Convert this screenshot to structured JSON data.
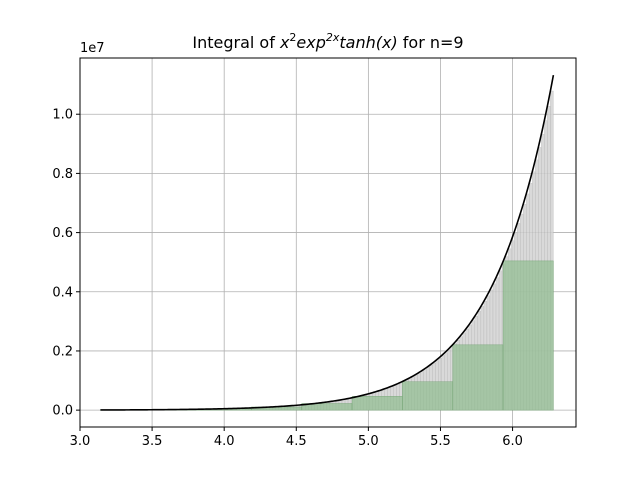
{
  "chart_data": {
    "type": "bar",
    "title": {
      "prefix": "Integral of ",
      "base": "x",
      "sup1": "2",
      "mid": "exp",
      "sup2": "2x",
      "suffix_func": "tanh",
      "suffix_arg": "(x)",
      "tail": " for n=9"
    },
    "xlabel": "",
    "ylabel": "",
    "y_offset_label": "1e7",
    "xlim": [
      3.0,
      6.44
    ],
    "ylim": [
      -0.057,
      1.19
    ],
    "x_ticks": [
      3.0,
      3.5,
      4.0,
      4.5,
      5.0,
      5.5,
      6.0
    ],
    "x_tick_labels": [
      "3.0",
      "3.5",
      "4.0",
      "4.5",
      "5.0",
      "5.5",
      "6.0"
    ],
    "y_ticks": [
      0.0,
      0.2,
      0.4,
      0.6,
      0.8,
      1.0
    ],
    "y_tick_labels": [
      "0.0",
      "0.2",
      "0.4",
      "0.6",
      "0.8",
      "1.0"
    ],
    "grid": true,
    "curve": {
      "x_start": 3.1416,
      "x_end": 6.2832,
      "color": "#000000"
    },
    "fine_bars": {
      "count": 150,
      "color": "#d3d3d3",
      "edge": "#a9a9a9"
    },
    "coarse_bars": {
      "color": "#8fbc8f",
      "x_left": [
        3.1416,
        3.4907,
        3.8397,
        4.1888,
        4.5379,
        4.8869,
        5.236,
        5.5851,
        5.9341
      ],
      "width": 0.349,
      "heights": [
        0.0011,
        0.0023,
        0.005,
        0.0107,
        0.0224,
        0.0466,
        0.096,
        0.2206,
        0.5043
      ]
    }
  }
}
